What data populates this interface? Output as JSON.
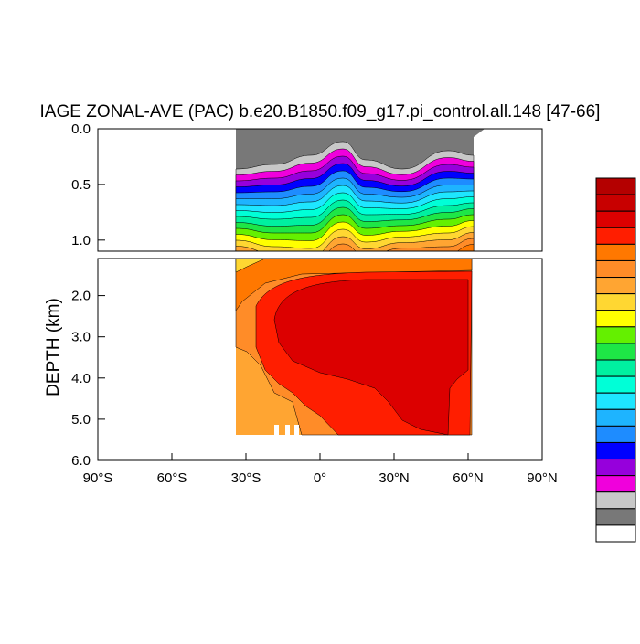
{
  "chart_data": {
    "type": "contour",
    "title": "IAGE ZONAL-AVE (PAC) b.e20.B1850.f09_g17.pi_control.all.148 [47-66]",
    "y_label": "DEPTH (km)",
    "xlim": [
      -90,
      90
    ],
    "xticks": [
      {
        "value": -90,
        "label": "90°S"
      },
      {
        "value": -60,
        "label": "60°S"
      },
      {
        "value": -30,
        "label": "30°S"
      },
      {
        "value": 0,
        "label": "0°"
      },
      {
        "value": 30,
        "label": "30°N"
      },
      {
        "value": 60,
        "label": "60°N"
      },
      {
        "value": 90,
        "label": "90°N"
      }
    ],
    "panels": [
      {
        "ylim": [
          0,
          1.1
        ],
        "yticks": [
          {
            "value": 0,
            "label": "0.0"
          },
          0.5,
          {
            "value": 1,
            "label": "1.0"
          }
        ]
      },
      {
        "ylim": [
          1.1,
          6
        ],
        "yticks": [
          {
            "value": 2,
            "label": "2.0"
          },
          {
            "value": 3,
            "label": "3.0"
          },
          {
            "value": 4,
            "label": "4.0"
          },
          {
            "value": 5,
            "label": "5.0"
          },
          {
            "value": 6,
            "label": "6.0"
          }
        ]
      }
    ],
    "colorbar_colors": [
      "#b40000",
      "#c80000",
      "#dc0000",
      "#ff1e00",
      "#ff7800",
      "#ff8c28",
      "#ffa532",
      "#ffd732",
      "#ffff00",
      "#64f000",
      "#1ee646",
      "#00f0a0",
      "#00ffd7",
      "#1ee6ff",
      "#1eb4ff",
      "#1e8cff",
      "#0000ff",
      "#9600dc",
      "#f000dc",
      "#c8c8c8",
      "#787878",
      "#ffffff"
    ]
  }
}
